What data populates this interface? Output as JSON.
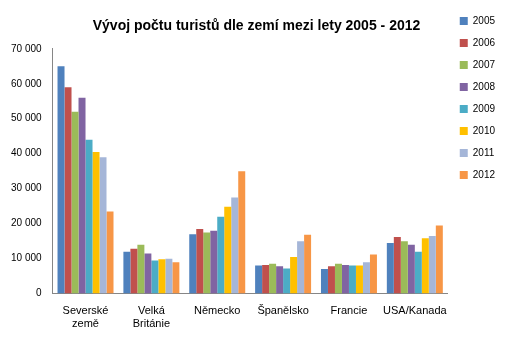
{
  "chart_data": {
    "type": "bar",
    "title": "Vývoj počtu turistů dle zemí mezi lety 2005 - 2012",
    "categories": [
      "Severské země",
      "Velká Británie",
      "Německo",
      "Španělsko",
      "Francie",
      "USA/Kanada"
    ],
    "series": [
      {
        "name": "2005",
        "color": "#4f81bd",
        "values": [
          65000,
          12000,
          17000,
          8000,
          7000,
          14500
        ]
      },
      {
        "name": "2006",
        "color": "#c0504d",
        "values": [
          59000,
          12800,
          18500,
          8200,
          7800,
          16200
        ]
      },
      {
        "name": "2007",
        "color": "#9bbb59",
        "values": [
          52000,
          14000,
          17500,
          8500,
          8500,
          15000
        ]
      },
      {
        "name": "2008",
        "color": "#8064a2",
        "values": [
          56000,
          11500,
          18000,
          7800,
          8200,
          14000
        ]
      },
      {
        "name": "2009",
        "color": "#4bacc6",
        "values": [
          44000,
          9500,
          22000,
          7200,
          8000,
          12000
        ]
      },
      {
        "name": "2010",
        "color": "#ffc000",
        "values": [
          40500,
          9800,
          24800,
          10500,
          8000,
          15800
        ]
      },
      {
        "name": "2011",
        "color": "#a5b6d8",
        "values": [
          39000,
          10000,
          27500,
          15000,
          9000,
          16500
        ]
      },
      {
        "name": "2012",
        "color": "#f79646",
        "values": [
          23500,
          9000,
          35000,
          16800,
          11200,
          19500
        ]
      }
    ],
    "ylim": [
      0,
      70000
    ],
    "yticks": [
      0,
      {
        "value": 10000,
        "label": "10 000"
      },
      {
        "value": 20000,
        "label": "20 000"
      },
      {
        "value": 30000,
        "label": "30 000"
      },
      {
        "value": 40000,
        "label": "40 000"
      },
      {
        "value": 50000,
        "label": "50 000"
      },
      {
        "value": 60000,
        "label": "60 000"
      },
      {
        "value": 70000,
        "label": "70 000"
      }
    ],
    "grid": false,
    "legend": "right"
  }
}
